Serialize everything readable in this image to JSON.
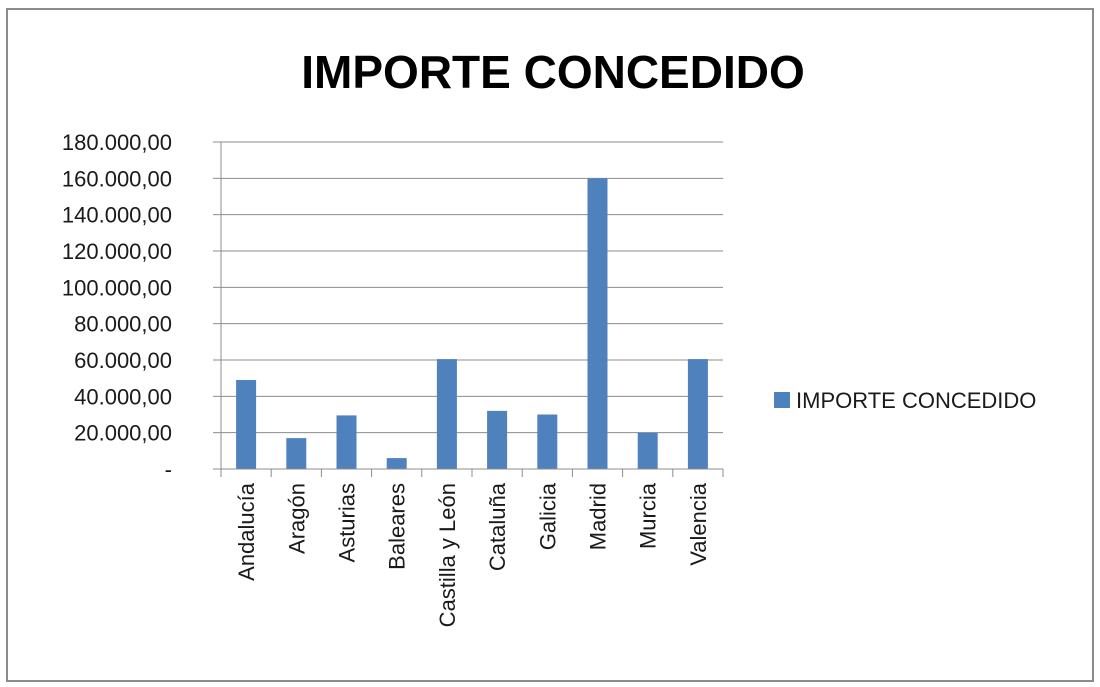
{
  "chart_data": {
    "type": "bar",
    "title": "IMPORTE CONCEDIDO",
    "xlabel": "",
    "ylabel": "",
    "categories": [
      "Andalucía",
      "Aragón",
      "Asturias",
      "Baleares",
      "Castilla y León",
      "Cataluña",
      "Galicia",
      "Madrid",
      "Murcia",
      "Valencia"
    ],
    "series": [
      {
        "name": "IMPORTE CONCEDIDO",
        "values": [
          49000,
          17000,
          29500,
          6000,
          60500,
          32000,
          30000,
          160000,
          20000,
          60500
        ]
      }
    ],
    "ylim": [
      0,
      180000
    ],
    "yticks": [
      0,
      20000,
      40000,
      60000,
      80000,
      100000,
      120000,
      140000,
      160000,
      180000
    ],
    "ytick_labels": [
      "-",
      "20.000,00",
      "40.000,00",
      "60.000,00",
      "80.000,00",
      "100.000,00",
      "120.000,00",
      "140.000,00",
      "160.000,00",
      "180.000,00"
    ],
    "grid": true,
    "legend_position": "right",
    "colors": {
      "bar": "#4f81bd",
      "grid": "#8c8c8c",
      "axis": "#8c8c8c"
    }
  }
}
